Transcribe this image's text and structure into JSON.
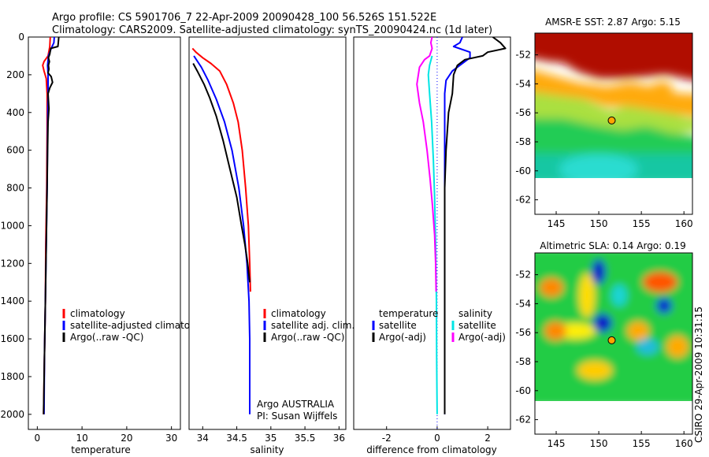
{
  "header": {
    "line1": "Argo profile: CS 5901706_7 22-Apr-2009 20090428_100 56.526S 151.522E",
    "line2": "Climatology: CARS2009. Satellite-adjusted climatology: synTS_20090424.nc (1d later)"
  },
  "credit": "CSIRO 29-Apr-2009 10:31:15",
  "colors": {
    "climatology": "#ff0000",
    "satellite": "#0000ff",
    "argo": "#000000",
    "temp_diff": "#00e5e5",
    "argo_diff_salinity": "#ff00ff",
    "land_fill": "#ffffff"
  },
  "chart_data": [
    {
      "type": "line",
      "name": "temperature-profile",
      "xlabel": "temperature",
      "xlim": [
        -2,
        32
      ],
      "ylim": [
        2080,
        0
      ],
      "xticks": [
        0,
        10,
        20,
        30
      ],
      "yticks": [
        0,
        200,
        400,
        600,
        800,
        1000,
        1200,
        1400,
        1600,
        1800,
        2000
      ],
      "legend": [
        "climatology",
        "satellite-adjusted climatology",
        "Argo(..raw -QC)"
      ],
      "legend_position": "center",
      "series": [
        {
          "name": "climatology",
          "color": "#ff0000",
          "points": [
            [
              2.9,
              0
            ],
            [
              2.8,
              50
            ],
            [
              2.4,
              100
            ],
            [
              1.5,
              130
            ],
            [
              1.2,
              150
            ],
            [
              1.5,
              180
            ],
            [
              2.0,
              220
            ],
            [
              2.2,
              300
            ],
            [
              2.2,
              500
            ],
            [
              2.1,
              800
            ],
            [
              1.9,
              1100
            ],
            [
              1.8,
              1400
            ],
            [
              1.6,
              1700
            ],
            [
              1.4,
              2000
            ]
          ]
        },
        {
          "name": "satellite-adjusted climatology",
          "color": "#0000ff",
          "points": [
            [
              3.8,
              0
            ],
            [
              3.7,
              30
            ],
            [
              3.1,
              60
            ],
            [
              2.5,
              100
            ],
            [
              2.3,
              150
            ],
            [
              2.4,
              200
            ],
            [
              2.4,
              300
            ],
            [
              2.3,
              500
            ],
            [
              2.2,
              800
            ],
            [
              2.0,
              1100
            ],
            [
              1.8,
              1400
            ],
            [
              1.6,
              1700
            ],
            [
              1.5,
              2000
            ]
          ]
        },
        {
          "name": "Argo(..raw -QC)",
          "color": "#000000",
          "points": [
            [
              4.8,
              0
            ],
            [
              4.7,
              30
            ],
            [
              4.6,
              50
            ],
            [
              3.0,
              60
            ],
            [
              2.8,
              90
            ],
            [
              2.5,
              110
            ],
            [
              2.7,
              130
            ],
            [
              2.5,
              150
            ],
            [
              2.6,
              170
            ],
            [
              2.4,
              190
            ],
            [
              3.1,
              210
            ],
            [
              3.4,
              240
            ],
            [
              2.8,
              270
            ],
            [
              2.4,
              300
            ],
            [
              2.6,
              380
            ],
            [
              2.4,
              450
            ],
            [
              2.3,
              600
            ],
            [
              2.2,
              800
            ],
            [
              2.0,
              1100
            ],
            [
              1.8,
              1400
            ],
            [
              1.6,
              1700
            ],
            [
              1.4,
              2000
            ]
          ]
        }
      ]
    },
    {
      "type": "line",
      "name": "salinity-profile",
      "xlabel": "salinity",
      "xlim": [
        33.8,
        36.1
      ],
      "ylim": [
        2080,
        0
      ],
      "xticks": [
        34,
        34.5,
        35,
        35.5,
        36
      ],
      "legend": [
        "climatology",
        "satellite adj. clim.",
        "Argo(..raw -QC)"
      ],
      "legend_position": "center-right",
      "annotation": [
        "Argo AUSTRALIA",
        "PI: Susan Wijffels"
      ],
      "series": [
        {
          "name": "climatology",
          "color": "#ff0000",
          "points": [
            [
              33.85,
              60
            ],
            [
              33.9,
              80
            ],
            [
              34.0,
              110
            ],
            [
              34.12,
              140
            ],
            [
              34.25,
              180
            ],
            [
              34.35,
              250
            ],
            [
              34.45,
              350
            ],
            [
              34.52,
              450
            ],
            [
              34.58,
              600
            ],
            [
              34.63,
              800
            ],
            [
              34.67,
              1000
            ],
            [
              34.69,
              1200
            ],
            [
              34.7,
              1350
            ]
          ]
        },
        {
          "name": "satellite adj. clim.",
          "color": "#0000ff",
          "points": [
            [
              33.87,
              100
            ],
            [
              33.98,
              160
            ],
            [
              34.08,
              230
            ],
            [
              34.2,
              330
            ],
            [
              34.32,
              450
            ],
            [
              34.43,
              600
            ],
            [
              34.53,
              800
            ],
            [
              34.6,
              1000
            ],
            [
              34.65,
              1200
            ],
            [
              34.68,
              1400
            ],
            [
              34.69,
              1600
            ],
            [
              34.69,
              1800
            ],
            [
              34.69,
              2000
            ]
          ]
        },
        {
          "name": "Argo(..raw -QC)",
          "color": "#000000",
          "points": [
            [
              33.86,
              140
            ],
            [
              33.92,
              180
            ],
            [
              34.02,
              250
            ],
            [
              34.1,
              320
            ],
            [
              34.2,
              420
            ],
            [
              34.3,
              550
            ],
            [
              34.4,
              700
            ],
            [
              34.5,
              850
            ],
            [
              34.57,
              1000
            ],
            [
              34.62,
              1100
            ],
            [
              34.66,
              1200
            ],
            [
              34.69,
              1300
            ]
          ]
        }
      ]
    },
    {
      "type": "line",
      "name": "difference-profile",
      "xlabel": "difference from climatology",
      "xlim": [
        -3.3,
        2.9
      ],
      "ylim": [
        2080,
        0
      ],
      "xticks": [
        -2,
        0,
        2
      ],
      "legend": [
        "temperature",
        "satellite",
        "Argo(-adj)",
        "salinity",
        "satellite",
        "Argo(-adj)"
      ],
      "legend_position": "center",
      "series": [
        {
          "name": "temperature satellite",
          "color": "#0000ff",
          "points": [
            [
              1.0,
              0
            ],
            [
              0.9,
              30
            ],
            [
              0.65,
              50
            ],
            [
              1.3,
              80
            ],
            [
              1.3,
              110
            ],
            [
              1.0,
              140
            ],
            [
              0.6,
              180
            ],
            [
              0.35,
              230
            ],
            [
              0.3,
              300
            ],
            [
              0.3,
              500
            ],
            [
              0.3,
              800
            ],
            [
              0.3,
              1100
            ],
            [
              0.3,
              1400
            ],
            [
              0.3,
              1700
            ],
            [
              0.3,
              2000
            ]
          ]
        },
        {
          "name": "temperature Argo(-adj)",
          "color": "#000000",
          "points": [
            [
              2.2,
              0
            ],
            [
              2.5,
              30
            ],
            [
              2.7,
              60
            ],
            [
              2.0,
              80
            ],
            [
              1.8,
              100
            ],
            [
              1.1,
              120
            ],
            [
              0.8,
              150
            ],
            [
              0.65,
              200
            ],
            [
              0.6,
              300
            ],
            [
              0.45,
              400
            ],
            [
              0.35,
              600
            ],
            [
              0.3,
              800
            ],
            [
              0.3,
              1100
            ],
            [
              0.3,
              1400
            ],
            [
              0.3,
              1700
            ],
            [
              0.3,
              2000
            ]
          ]
        },
        {
          "name": "salinity satellite",
          "color": "#00e5e5",
          "points": [
            [
              -0.2,
              100
            ],
            [
              -0.3,
              150
            ],
            [
              -0.35,
              200
            ],
            [
              -0.3,
              300
            ],
            [
              -0.22,
              450
            ],
            [
              -0.15,
              650
            ],
            [
              -0.1,
              850
            ],
            [
              -0.06,
              1100
            ],
            [
              -0.03,
              1400
            ],
            [
              -0.02,
              1700
            ],
            [
              0.0,
              2000
            ]
          ]
        },
        {
          "name": "salinity Argo(-adj)",
          "color": "#ff00ff",
          "points": [
            [
              -0.2,
              0
            ],
            [
              -0.25,
              30
            ],
            [
              -0.2,
              60
            ],
            [
              -0.3,
              100
            ],
            [
              -0.5,
              120
            ],
            [
              -0.7,
              160
            ],
            [
              -0.8,
              250
            ],
            [
              -0.7,
              350
            ],
            [
              -0.55,
              450
            ],
            [
              -0.4,
              600
            ],
            [
              -0.28,
              750
            ],
            [
              -0.18,
              900
            ],
            [
              -0.1,
              1050
            ],
            [
              -0.06,
              1200
            ],
            [
              -0.04,
              1350
            ]
          ]
        }
      ]
    },
    {
      "type": "heatmap",
      "name": "amsr-e-sst-map",
      "title": "AMSR-E SST: 2.87  Argo: 5.15",
      "xlim": [
        142.5,
        161
      ],
      "ylim": [
        -63,
        -50.5
      ],
      "xticks": [
        145,
        150,
        155,
        160
      ],
      "yticks": [
        -52,
        -54,
        -56,
        -58,
        -60,
        -62
      ],
      "data_coverage_lat": [
        -60,
        -50.5
      ],
      "argo_position": {
        "lon": 151.522,
        "lat": -56.526
      }
    },
    {
      "type": "heatmap",
      "name": "altimetric-sla-map",
      "title": "Altimetric SLA: 0.14  Argo: 0.19",
      "xlim": [
        142.5,
        161
      ],
      "ylim": [
        -63,
        -50.5
      ],
      "xticks": [
        145,
        150,
        155,
        160
      ],
      "yticks": [
        -52,
        -54,
        -56,
        -58,
        -60,
        -62
      ],
      "data_coverage_lat": [
        -60,
        -50.5
      ],
      "argo_position": {
        "lon": 151.522,
        "lat": -56.526
      }
    }
  ]
}
